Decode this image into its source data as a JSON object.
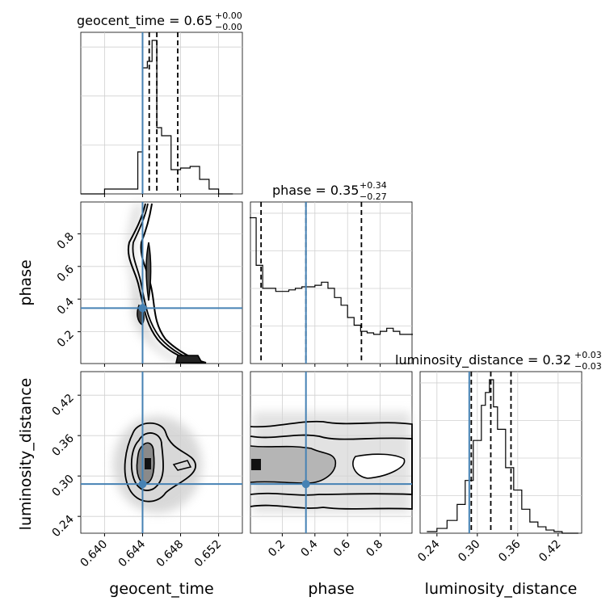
{
  "chart_data": {
    "type": "corner",
    "parameters": [
      "geocent_time",
      "phase",
      "luminosity_distance"
    ],
    "truths": {
      "geocent_time": 0.644,
      "phase": 0.345,
      "luminosity_distance": 0.288
    },
    "truth_color": "#4682b4",
    "ranges": {
      "geocent_time": [
        0.6375,
        0.6545
      ],
      "phase": [
        0.005,
        0.995
      ],
      "luminosity_distance": [
        0.215,
        0.455
      ]
    },
    "ticks": {
      "geocent_time": [
        "0.640",
        "0.644",
        "0.648",
        "0.652"
      ],
      "phase": [
        "0.2",
        "0.4",
        "0.6",
        "0.8"
      ],
      "luminosity_distance": [
        "0.24",
        "0.30",
        "0.36",
        "0.42"
      ]
    },
    "titles": [
      {
        "param": "geocent_time",
        "text": "geocent_time = 0.65",
        "plus": "+0.00",
        "minus": "−0.00",
        "q16": 0.6447,
        "median": 0.6455,
        "q84": 0.6477
      },
      {
        "param": "phase",
        "text": "phase = 0.35",
        "plus": "+0.34",
        "minus": "−0.27",
        "q16": 0.07,
        "median": 0.345,
        "q84": 0.685
      },
      {
        "param": "luminosity_distance",
        "text": "luminosity_distance = 0.32",
        "plus": "+0.03",
        "minus": "−0.03",
        "q16": 0.291,
        "median": 0.32,
        "q84": 0.35
      }
    ],
    "histograms": {
      "geocent_time": {
        "edges": [
          0.6375,
          0.64,
          0.6435,
          0.644,
          0.6445,
          0.645,
          0.6455,
          0.646,
          0.647,
          0.648,
          0.649,
          0.65,
          0.651,
          0.652,
          0.6535
        ],
        "counts": [
          0,
          3,
          26,
          78,
          82,
          95,
          41,
          36,
          15,
          16,
          17,
          9,
          3,
          0
        ]
      },
      "phase": {
        "edges": [
          0.0,
          0.04,
          0.08,
          0.12,
          0.16,
          0.2,
          0.24,
          0.28,
          0.32,
          0.36,
          0.4,
          0.44,
          0.48,
          0.52,
          0.56,
          0.6,
          0.64,
          0.68,
          0.72,
          0.76,
          0.8,
          0.84,
          0.88,
          0.92,
          0.96,
          1.0
        ],
        "counts": [
          95,
          64,
          49,
          49,
          47,
          47,
          48,
          49,
          50,
          50,
          51,
          53,
          49,
          43,
          38,
          30,
          25,
          21,
          20,
          19,
          21,
          23,
          21,
          19,
          19
        ]
      },
      "luminosity_distance": {
        "edges": [
          0.225,
          0.24,
          0.255,
          0.27,
          0.282,
          0.294,
          0.306,
          0.312,
          0.318,
          0.324,
          0.33,
          0.342,
          0.354,
          0.366,
          0.378,
          0.39,
          0.402,
          0.414,
          0.426,
          0.45
        ],
        "counts": [
          1,
          3,
          8,
          18,
          33,
          58,
          80,
          88,
          96,
          79,
          65,
          41,
          27,
          15,
          7,
          4,
          2,
          1,
          0
        ]
      }
    }
  }
}
